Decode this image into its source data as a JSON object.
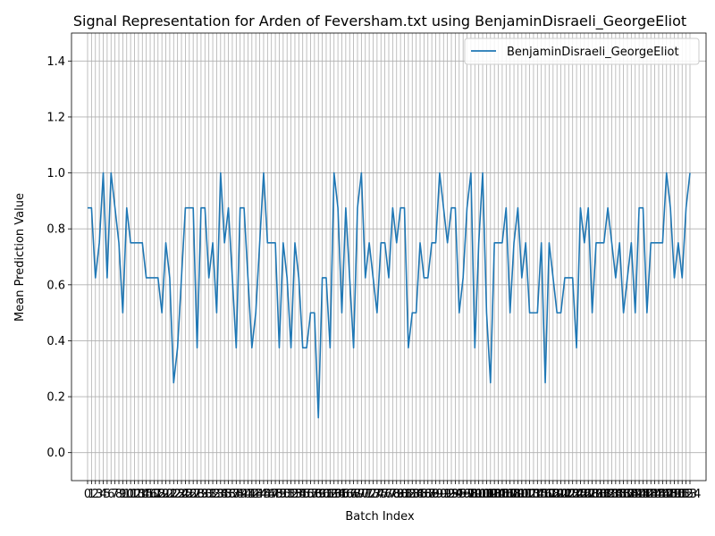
{
  "chart_data": {
    "type": "line",
    "title": "Signal Representation for Arden of Feversham.txt using BenjaminDisraeli_GeorgeEliot",
    "xlabel": "Batch Index",
    "ylabel": "Mean Prediction Value",
    "xlim": [
      0,
      163
    ],
    "ylim": [
      -0.1,
      1.5
    ],
    "yticks": [
      0.0,
      0.2,
      0.4,
      0.6,
      0.8,
      1.0,
      1.2,
      1.4
    ],
    "ytick_labels": [
      "0.0",
      "0.2",
      "0.4",
      "0.6",
      "0.8",
      "1.0",
      "1.2",
      "1.4"
    ],
    "grid": true,
    "legend_position": "top-right",
    "line_color": "#1f77b4",
    "series": [
      {
        "name": "BenjaminDisraeli_GeorgeEliot",
        "values": [
          0.875,
          0.875,
          0.625,
          0.75,
          1.0,
          0.625,
          1.0,
          0.875,
          0.75,
          0.5,
          0.875,
          0.75,
          0.75,
          0.75,
          0.75,
          0.625,
          0.625,
          0.625,
          0.625,
          0.5,
          0.75,
          0.625,
          0.25,
          0.375,
          0.625,
          0.875,
          0.875,
          0.875,
          0.375,
          0.875,
          0.875,
          0.625,
          0.75,
          0.5,
          1.0,
          0.75,
          0.875,
          0.625,
          0.375,
          0.875,
          0.875,
          0.625,
          0.375,
          0.5,
          0.75,
          1.0,
          0.75,
          0.75,
          0.75,
          0.375,
          0.75,
          0.625,
          0.375,
          0.75,
          0.625,
          0.375,
          0.375,
          0.5,
          0.5,
          0.125,
          0.625,
          0.625,
          0.375,
          1.0,
          0.875,
          0.5,
          0.875,
          0.625,
          0.375,
          0.875,
          1.0,
          0.625,
          0.75,
          0.625,
          0.5,
          0.75,
          0.75,
          0.625,
          0.875,
          0.75,
          0.875,
          0.875,
          0.375,
          0.5,
          0.5,
          0.75,
          0.625,
          0.625,
          0.75,
          0.75,
          1.0,
          0.875,
          0.75,
          0.875,
          0.875,
          0.5,
          0.625,
          0.875,
          1.0,
          0.375,
          0.75,
          1.0,
          0.5,
          0.25,
          0.75,
          0.75,
          0.75,
          0.875,
          0.5,
          0.75,
          0.875,
          0.625,
          0.75,
          0.5,
          0.5,
          0.5,
          0.75,
          0.25,
          0.75,
          0.625,
          0.5,
          0.5,
          0.625,
          0.625,
          0.625,
          0.375,
          0.875,
          0.75,
          0.875,
          0.5,
          0.75,
          0.75,
          0.75,
          0.875,
          0.75,
          0.625,
          0.75,
          0.5,
          0.625,
          0.75,
          0.5,
          0.875,
          0.875,
          0.5,
          0.75,
          0.75,
          0.75,
          0.75,
          1.0,
          0.875,
          0.625,
          0.75,
          0.625,
          0.875,
          1.0
        ]
      }
    ]
  }
}
